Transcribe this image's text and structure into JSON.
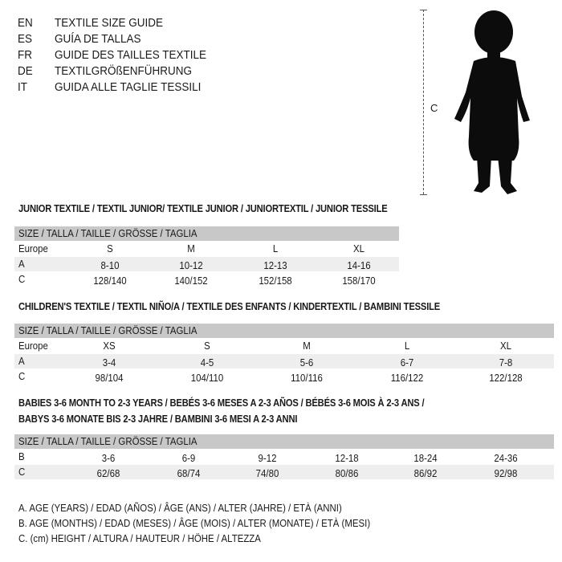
{
  "languages": [
    {
      "code": "EN",
      "text": "TEXTILE SIZE GUIDE"
    },
    {
      "code": "ES",
      "text": "GUÍA DE TALLAS"
    },
    {
      "code": "FR",
      "text": "GUIDE DES TAILLES TEXTILE"
    },
    {
      "code": "DE",
      "text": "TEXTILGRÖßENFÜHRUNG"
    },
    {
      "code": "IT",
      "text": "GUIDA ALLE TAGLIE TESSILI"
    }
  ],
  "figure": {
    "measure_label": "C",
    "icon": "child-silhouette"
  },
  "tables": [
    {
      "title": "JUNIOR TEXTILE / TEXTIL JUNIOR/ TEXTILE JUNIOR / JUNIORTEXTIL / JUNIOR TESSILE",
      "header": "SIZE / TALLA / TAILLE / GRÖSSE / TAGLIA",
      "rows": [
        {
          "label": "Europe",
          "values": [
            "S",
            "M",
            "L",
            "XL"
          ]
        },
        {
          "label": "A",
          "values": [
            "8-10",
            "10-12",
            "12-13",
            "14-16"
          ]
        },
        {
          "label": "C",
          "values": [
            "128/140",
            "140/152",
            "152/158",
            "158/170"
          ]
        }
      ]
    },
    {
      "title": "CHILDREN'S TEXTILE / TEXTIL NIÑO/A / TEXTILE DES ENFANTS / KINDERTEXTIL / BAMBINI TESSILE",
      "header": "SIZE / TALLA / TAILLE / GRÖSSE / TAGLIA",
      "rows": [
        {
          "label": "Europe",
          "values": [
            "XS",
            "S",
            "M",
            "L",
            "XL"
          ]
        },
        {
          "label": "A",
          "values": [
            "3-4",
            "4-5",
            "5-6",
            "6-7",
            "7-8"
          ]
        },
        {
          "label": "C",
          "values": [
            "98/104",
            "104/110",
            "110/116",
            "116/122",
            "122/128"
          ]
        }
      ]
    },
    {
      "title": "BABIES 3-6 MONTH TO 2-3 YEARS / BEBÉS 3-6 MESES A 2-3 AÑOS / BÉBÉS 3-6 MOIS À 2-3 ANS /",
      "title2": "BABYS 3-6 MONATE BIS 2-3 JAHRE / BAMBINI 3-6 MESI A 2-3 ANNI",
      "header": "SIZE / TALLA / TAILLE / GRÖSSE / TAGLIA",
      "rows": [
        {
          "label": "B",
          "values": [
            "3-6",
            "6-9",
            "9-12",
            "12-18",
            "18-24",
            "24-36"
          ]
        },
        {
          "label": "C",
          "values": [
            "62/68",
            "68/74",
            "74/80",
            "80/86",
            "86/92",
            "92/98"
          ]
        }
      ]
    }
  ],
  "legend": [
    "A. AGE (YEARS) / EDAD (AÑOS) / ÂGE (ANS) / ALTER (JAHRE) / ETÀ (ANNI)",
    "B. AGE (MONTHS) / EDAD (MESES) / ÂGE (MOIS) / ALTER (MONATE) / ETÀ (MESI)",
    "C. (cm) HEIGHT / ALTURA / HAUTEUR / HÖHE / ALTEZZA"
  ]
}
